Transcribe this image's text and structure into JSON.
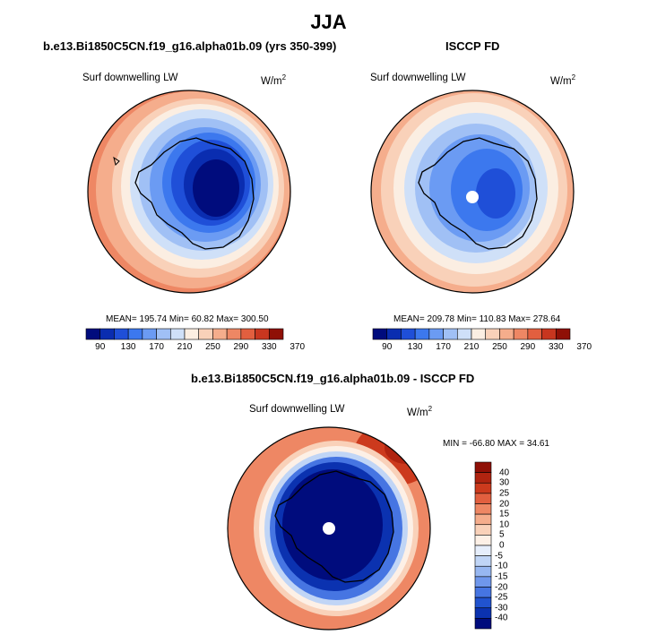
{
  "title": "JJA",
  "panels": [
    {
      "title": "b.e13.Bi1850C5CN.f19_g16.alpha01b.09 (yrs 350-399)",
      "variable": "Surf downwelling LW",
      "units_base": "W/m",
      "units_exp": "2",
      "stats": "MEAN= 195.74  Min=  60.82  Max= 300.50",
      "colorbar_ticks": [
        "90",
        "130",
        "170",
        "210",
        "250",
        "290",
        "330",
        "370"
      ]
    },
    {
      "title": "ISCCP FD",
      "variable": "Surf downwelling LW",
      "units_base": "W/m",
      "units_exp": "2",
      "stats": "MEAN= 209.78  Min= 110.83  Max= 278.64",
      "colorbar_ticks": [
        "90",
        "130",
        "170",
        "210",
        "250",
        "290",
        "330",
        "370"
      ]
    },
    {
      "title": "b.e13.Bi1850C5CN.f19_g16.alpha01b.09 - ISCCP FD",
      "variable": "Surf downwelling LW",
      "units_base": "W/m",
      "units_exp": "2",
      "stats": "MIN = -66.80 MAX =  34.61",
      "colorbar_ticks": [
        "40",
        "30",
        "25",
        "20",
        "15",
        "10",
        "5",
        "0",
        "-5",
        "-10",
        "-15",
        "-20",
        "-25",
        "-30",
        "-40"
      ]
    }
  ],
  "colors": {
    "abs_scale": [
      "#000c7d",
      "#0a2db0",
      "#1f4fd8",
      "#3c78ee",
      "#6b9bf3",
      "#a0c0f5",
      "#cfe0f8",
      "#fbeee2",
      "#f9d1b9",
      "#f5ad8c",
      "#ee8764",
      "#e25f3f",
      "#c8361f",
      "#8f1006"
    ],
    "diff_scale": [
      "#8f1006",
      "#b02410",
      "#cc3a1d",
      "#e25f3f",
      "#ee8764",
      "#f5ad8c",
      "#f9d1b9",
      "#fdf0e6",
      "#e6eefb",
      "#c0d5f6",
      "#97b7f1",
      "#6f97ec",
      "#4675e2",
      "#2153cf",
      "#0b32b0",
      "#000c7d"
    ]
  }
}
